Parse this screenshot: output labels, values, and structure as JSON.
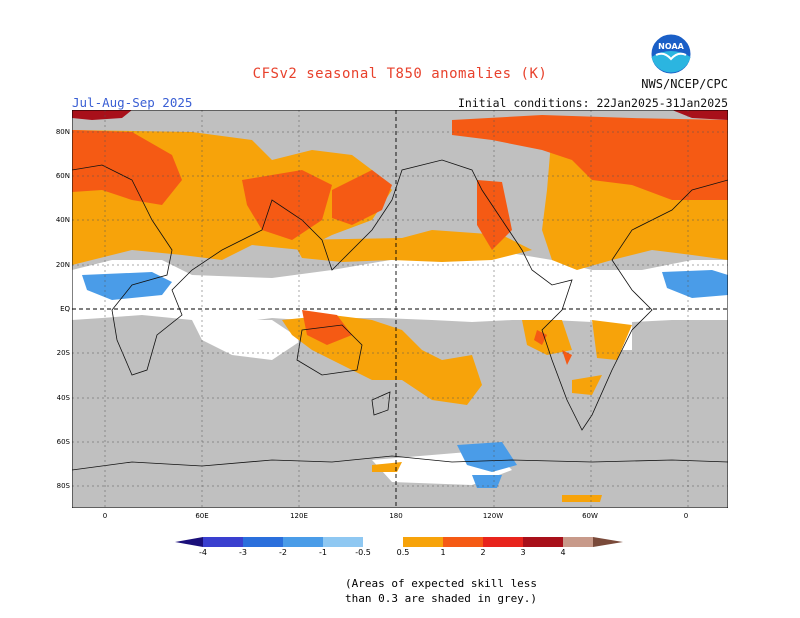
{
  "title": "CFSv2 seasonal T850 anomalies (K)",
  "season": "Jul-Aug-Sep 2025",
  "agency": "NWS/NCEP/CPC",
  "initial_conditions": "Initial conditions: 22Jan2025-31Jan2025",
  "logo": {
    "label": "NOAA",
    "icon": "noaa-logo-icon",
    "color_top": "#1a5fc7",
    "color_bottom": "#2bb5e0"
  },
  "map": {
    "projection": "equirectangular",
    "lon_range": "-5 to 355 (0 at Greenwich)",
    "lat_range": [
      -90,
      90
    ],
    "lat_labels": [
      "80N",
      "60N",
      "40N",
      "20N",
      "EQ",
      "20S",
      "40S",
      "60S",
      "80S"
    ],
    "lon_labels": [
      "0",
      "60E",
      "120E",
      "180",
      "120W",
      "60W",
      "0"
    ],
    "dashed_reference_lines": [
      "EQ",
      "180"
    ],
    "grey_meaning": "skill < 0.3"
  },
  "colorbar": {
    "labels": [
      "-4",
      "-3",
      "-2",
      "-1",
      "-0.5",
      "0.5",
      "1",
      "2",
      "3",
      "4"
    ],
    "colors": [
      "#1a0f7a",
      "#3a3fcf",
      "#2a6fdc",
      "#4a9ce8",
      "#8fc8f2",
      "#ffffff",
      "#f7a30a",
      "#f55a14",
      "#e8241c",
      "#a8101a",
      "#c89a8a",
      "#7a4a3a"
    ]
  },
  "note": [
    "(Areas of expected skill less",
    "than 0.3 are shaded in grey.)"
  ]
}
